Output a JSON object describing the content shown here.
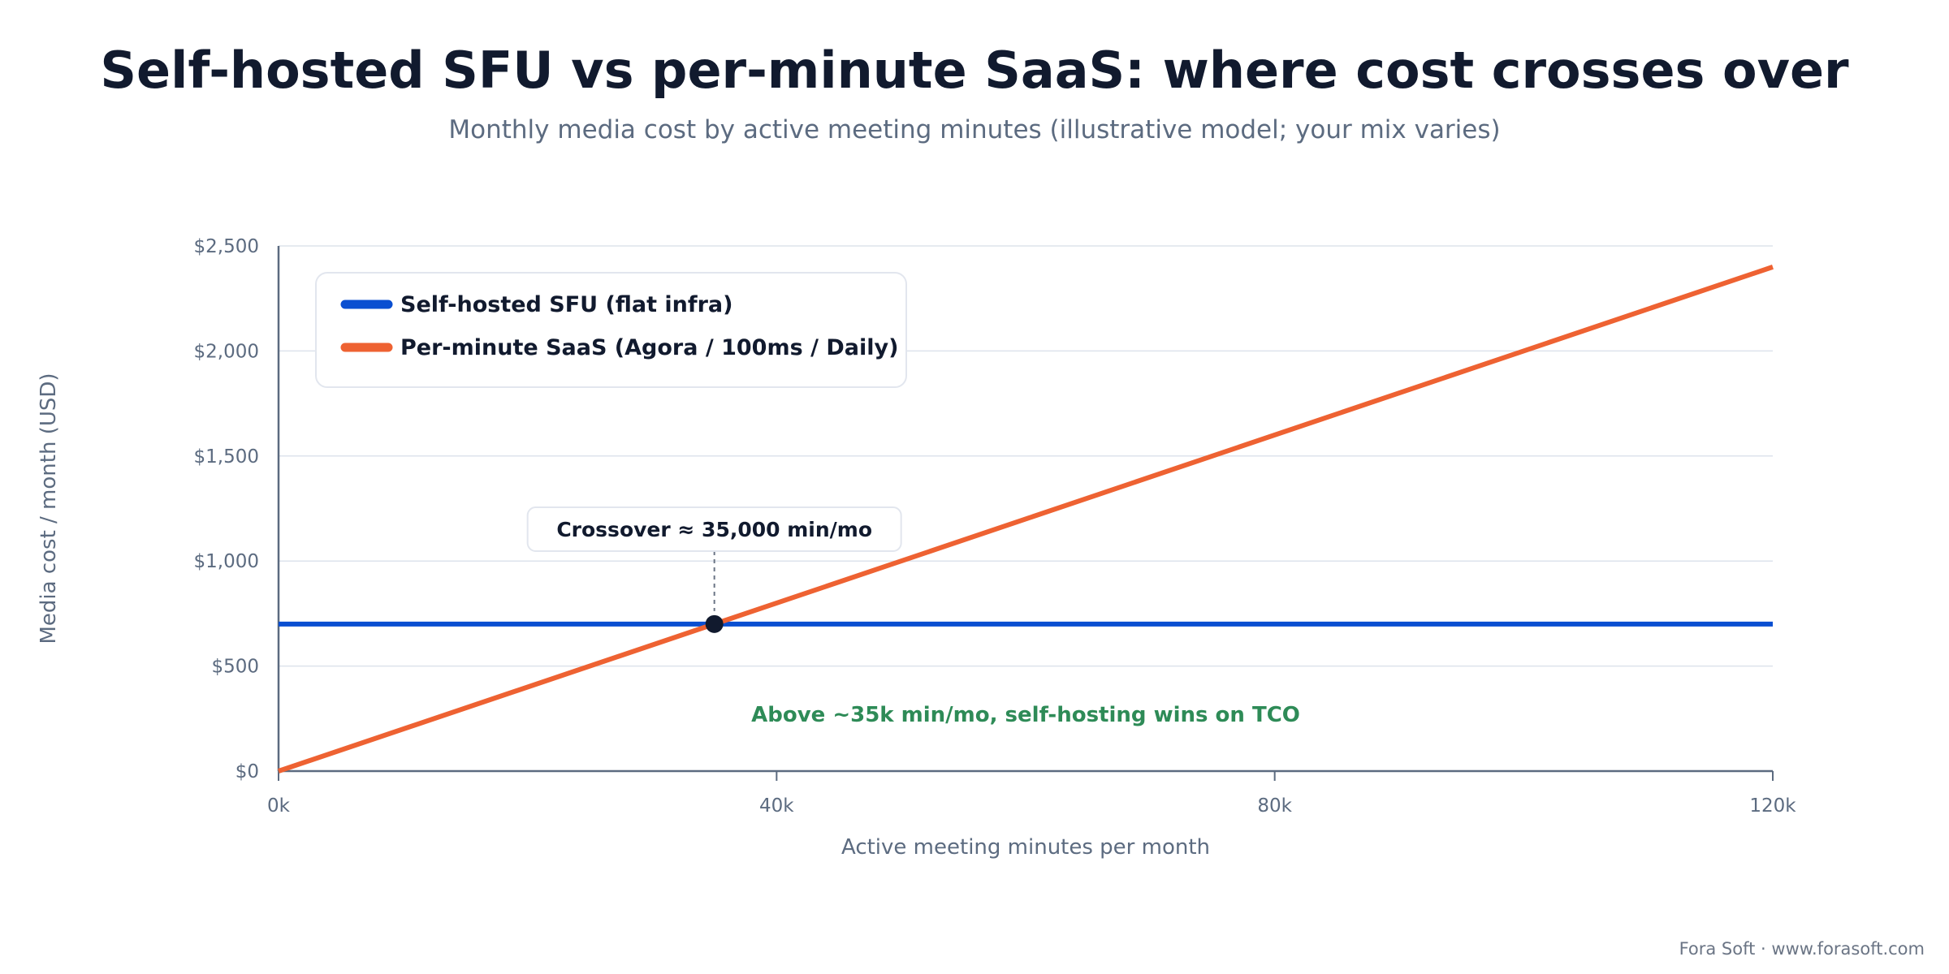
{
  "header": {
    "title": "Self-hosted SFU vs per-minute SaaS: where cost crosses over",
    "subtitle": "Monthly media cost by active meeting minutes (illustrative model; your mix varies)"
  },
  "footer": {
    "credit": "Fora Soft · www.forasoft.com"
  },
  "chart_data": {
    "type": "line",
    "xlabel": "Active meeting minutes per month",
    "ylabel": "Media cost / month (USD)",
    "xlim": [
      0,
      120000
    ],
    "ylim": [
      0,
      2500
    ],
    "x_ticks": [
      {
        "value": 0,
        "label": "0k"
      },
      {
        "value": 40000,
        "label": "40k"
      },
      {
        "value": 80000,
        "label": "80k"
      },
      {
        "value": 120000,
        "label": "120k"
      }
    ],
    "y_ticks": [
      {
        "value": 0,
        "label": "$0"
      },
      {
        "value": 500,
        "label": "$500"
      },
      {
        "value": 1000,
        "label": "$1,000"
      },
      {
        "value": 1500,
        "label": "$1,500"
      },
      {
        "value": 2000,
        "label": "$2,000"
      },
      {
        "value": 2500,
        "label": "$2,500"
      }
    ],
    "grid": true,
    "legend_position": "top-left",
    "series": [
      {
        "name": "Self-hosted SFU (flat infra)",
        "color": "#0a4fd1",
        "x": [
          0,
          120000
        ],
        "y": [
          700,
          700
        ]
      },
      {
        "name": "Per-minute SaaS (Agora / 100ms / Daily)",
        "color": "#ee6232",
        "x": [
          0,
          120000
        ],
        "y": [
          0,
          2400
        ]
      }
    ],
    "crossover": {
      "x": 35000,
      "y": 700,
      "label": "Crossover ≈ 35,000 min/mo"
    },
    "annotation": {
      "text": "Above ~35k min/mo, self-hosting wins on TCO",
      "color": "#2e8b57",
      "x": 60000,
      "y": 270
    }
  }
}
